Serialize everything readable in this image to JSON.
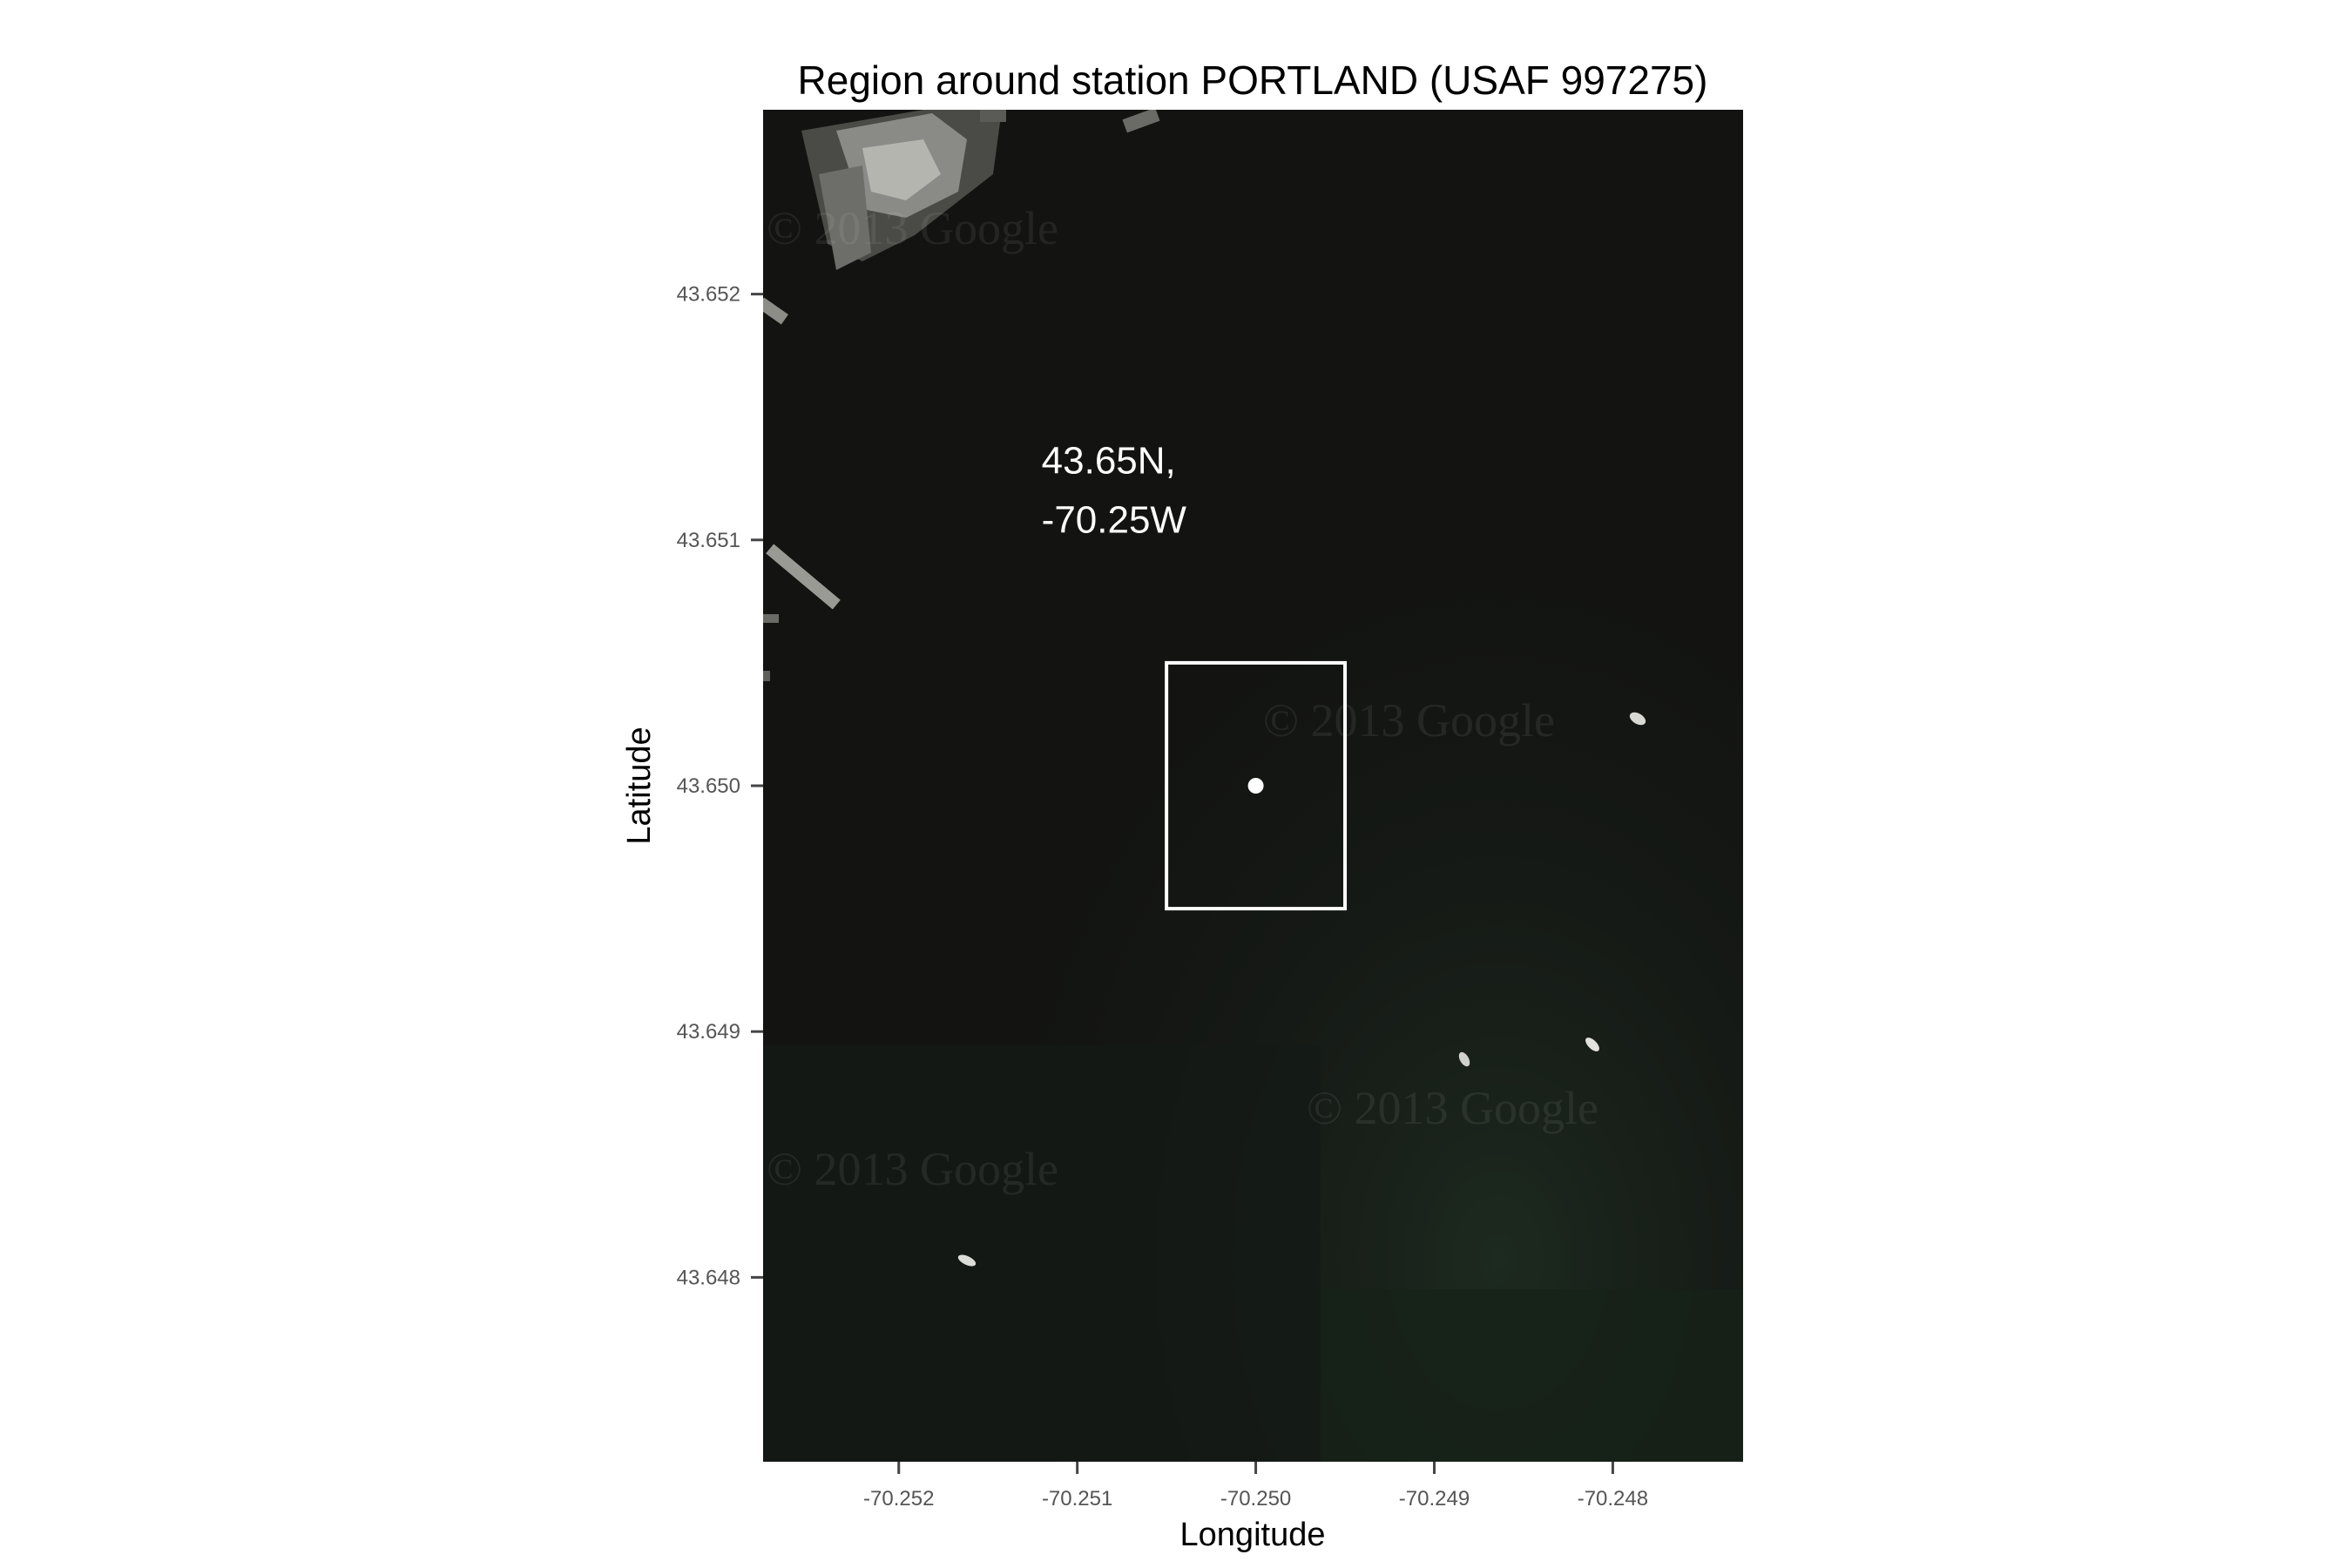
{
  "map": {
    "title": "Region around station PORTLAND (USAF 997275)",
    "xlabel": "Longitude",
    "ylabel": "Latitude",
    "x_ticks": [
      {
        "value": -70.252,
        "label": "-70.252"
      },
      {
        "value": -70.251,
        "label": "-70.251"
      },
      {
        "value": -70.25,
        "label": "-70.250"
      },
      {
        "value": -70.249,
        "label": "-70.249"
      },
      {
        "value": -70.248,
        "label": "-70.248"
      }
    ],
    "y_ticks": [
      {
        "value": 43.652,
        "label": "43.652"
      },
      {
        "value": 43.651,
        "label": "43.651"
      },
      {
        "value": 43.65,
        "label": "43.650"
      },
      {
        "value": 43.649,
        "label": "43.649"
      },
      {
        "value": 43.648,
        "label": "43.648"
      }
    ],
    "xlim": [
      -70.25276,
      -70.24727
    ],
    "ylim": [
      43.64725,
      43.65275
    ],
    "basemap": "satellite",
    "watermark": "© 2013 Google",
    "station": {
      "lon": -70.25,
      "lat": 43.65,
      "color": "#ffffff"
    },
    "box": {
      "lon_min": -70.2505,
      "lon_max": -70.2495,
      "lat_min": 43.6495,
      "lat_max": 43.6505
    },
    "annotation": {
      "line1": "43.65N,",
      "line2": "-70.25W",
      "lon": -70.2512,
      "lat": 43.65125
    }
  }
}
